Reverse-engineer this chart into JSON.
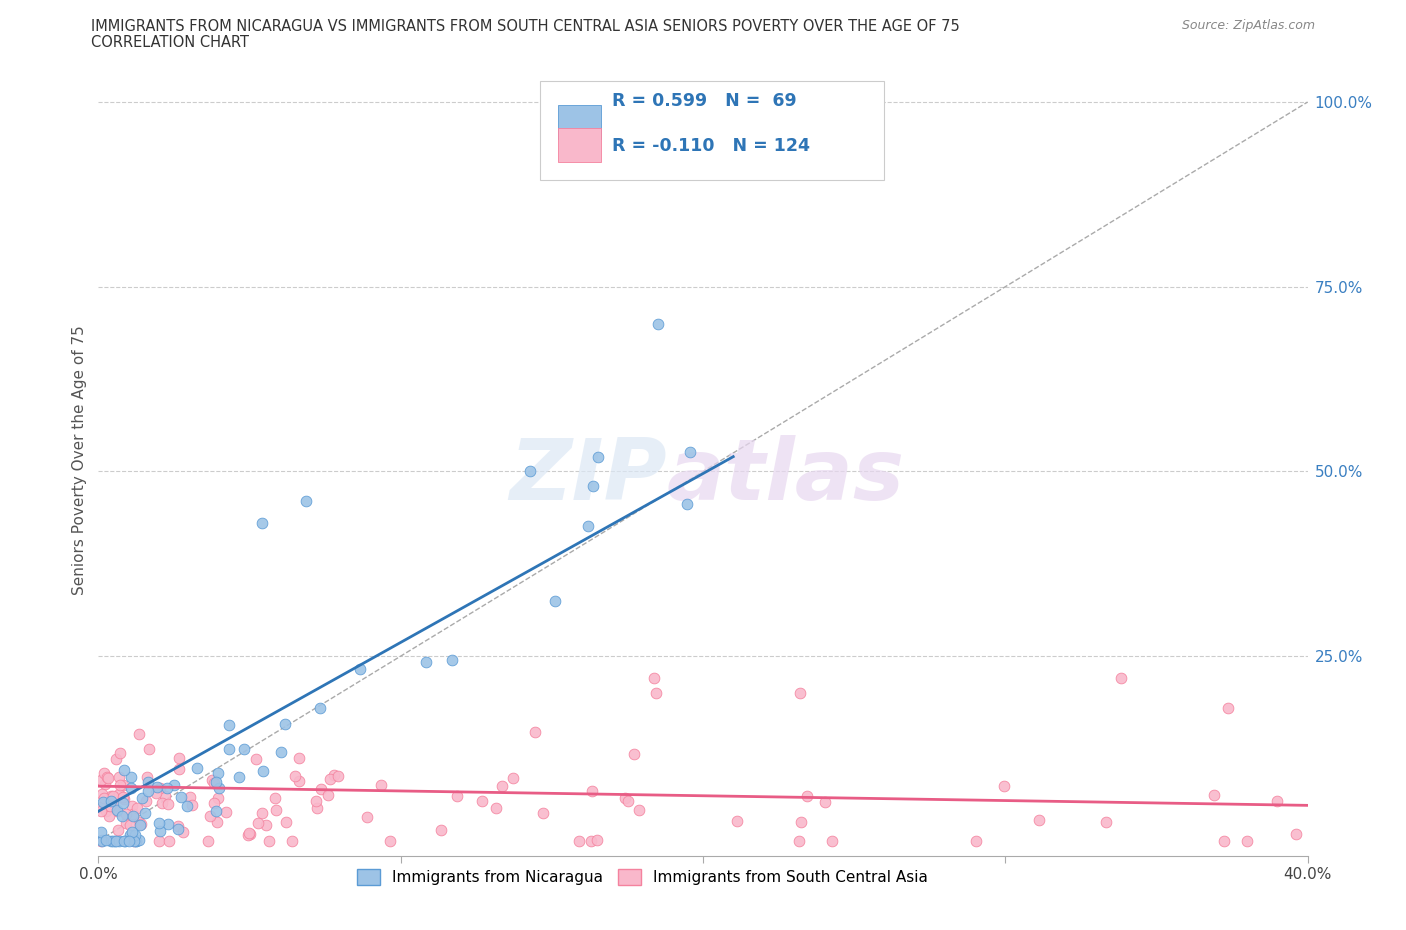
{
  "title_line1": "IMMIGRANTS FROM NICARAGUA VS IMMIGRANTS FROM SOUTH CENTRAL ASIA SENIORS POVERTY OVER THE AGE OF 75",
  "title_line2": "CORRELATION CHART",
  "source_text": "Source: ZipAtlas.com",
  "ylabel": "Seniors Poverty Over the Age of 75",
  "xlim": [
    0.0,
    0.4
  ],
  "ylim": [
    -0.02,
    1.05
  ],
  "nicaragua_color": "#5b9bd5",
  "nicaragua_color_fill": "#9dc3e6",
  "south_asia_color": "#f4829e",
  "south_asia_color_fill": "#f9b8cb",
  "line_nicaragua_color": "#2e75b6",
  "line_south_asia_color": "#e85c85",
  "R_nicaragua": 0.599,
  "N_nicaragua": 69,
  "R_south_asia": -0.11,
  "N_south_asia": 124,
  "grid_color": "#cccccc",
  "background_color": "#ffffff"
}
